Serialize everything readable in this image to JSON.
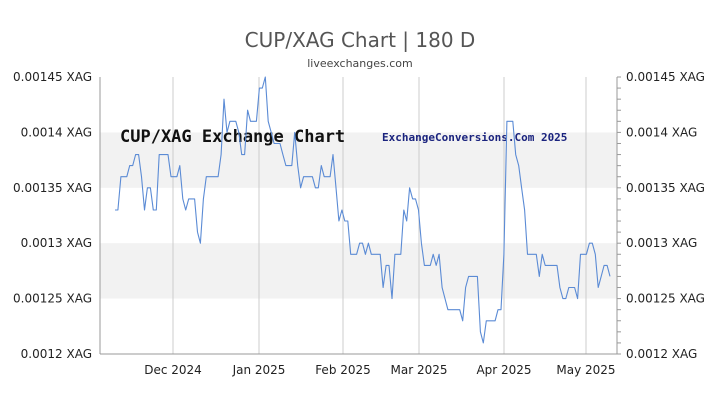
{
  "header": {
    "title": "CUP/XAG Chart | 180 D",
    "source": "liveexchanges.com"
  },
  "watermarks": {
    "left": "CUP/XAG Exchange Chart",
    "right": "ExchangeConversions.Com 2025"
  },
  "colors": {
    "line": "#5b8bd5",
    "band": "#f2f2f2",
    "grid": "#cccccc",
    "axis": "#999999"
  },
  "chart_data": {
    "type": "line",
    "ylim": [
      0.0012,
      0.00145
    ],
    "y_ticks": [
      {
        "value": 0.00145,
        "label": "0.00145 XAG"
      },
      {
        "value": 0.0014,
        "label": "0.0014 XAG"
      },
      {
        "value": 0.00135,
        "label": "0.00135 XAG"
      },
      {
        "value": 0.0013,
        "label": "0.0013 XAG"
      },
      {
        "value": 0.00125,
        "label": "0.00125 XAG"
      },
      {
        "value": 0.0012,
        "label": "0.0012 XAG"
      }
    ],
    "x_ticks": [
      "Dec 2024",
      "Jan 2025",
      "Feb 2025",
      "Mar 2025",
      "Apr 2025",
      "May 2025"
    ],
    "series": [
      {
        "values": [
          0.00133,
          0.00133,
          0.00136,
          0.00136,
          0.00136,
          0.00137,
          0.00137,
          0.00138,
          0.00138,
          0.00136,
          0.00133,
          0.00135,
          0.00135,
          0.00133,
          0.00133,
          0.00138,
          0.00138,
          0.00138,
          0.00138,
          0.00136,
          0.00136,
          0.00136,
          0.00137,
          0.00134,
          0.00133,
          0.00134,
          0.00134,
          0.00134,
          0.00131,
          0.0013,
          0.00134,
          0.00136,
          0.00136,
          0.00136,
          0.00136,
          0.00136,
          0.00138,
          0.00143,
          0.0014,
          0.00141,
          0.00141,
          0.00141,
          0.0014,
          0.00138,
          0.00138,
          0.00142,
          0.00141,
          0.00141,
          0.00141,
          0.00144,
          0.00144,
          0.00145,
          0.00141,
          0.0014,
          0.00139,
          0.00139,
          0.00139,
          0.00138,
          0.00137,
          0.00137,
          0.00137,
          0.0014,
          0.00137,
          0.00135,
          0.00136,
          0.00136,
          0.00136,
          0.00136,
          0.00135,
          0.00135,
          0.00137,
          0.00136,
          0.00136,
          0.00136,
          0.00138,
          0.00135,
          0.00132,
          0.00133,
          0.00132,
          0.00132,
          0.00129,
          0.00129,
          0.00129,
          0.0013,
          0.0013,
          0.00129,
          0.0013,
          0.00129,
          0.00129,
          0.00129,
          0.00129,
          0.00126,
          0.00128,
          0.00128,
          0.00125,
          0.00129,
          0.00129,
          0.00129,
          0.00133,
          0.00132,
          0.00135,
          0.00134,
          0.00134,
          0.00133,
          0.0013,
          0.00128,
          0.00128,
          0.00128,
          0.00129,
          0.00128,
          0.00129,
          0.00126,
          0.00125,
          0.00124,
          0.00124,
          0.00124,
          0.00124,
          0.00124,
          0.00123,
          0.00126,
          0.00127,
          0.00127,
          0.00127,
          0.00127,
          0.00122,
          0.00121,
          0.00123,
          0.00123,
          0.00123,
          0.00123,
          0.00124,
          0.00124,
          0.00129,
          0.00141,
          0.00141,
          0.00141,
          0.00138,
          0.00137,
          0.00135,
          0.00133,
          0.00129,
          0.00129,
          0.00129,
          0.00129,
          0.00127,
          0.00129,
          0.00128,
          0.00128,
          0.00128,
          0.00128,
          0.00128,
          0.00126,
          0.00125,
          0.00125,
          0.00126,
          0.00126,
          0.00126,
          0.00125,
          0.00129,
          0.00129,
          0.00129,
          0.0013,
          0.0013,
          0.00129,
          0.00126,
          0.00127,
          0.00128,
          0.00128,
          0.00127
        ]
      }
    ]
  }
}
